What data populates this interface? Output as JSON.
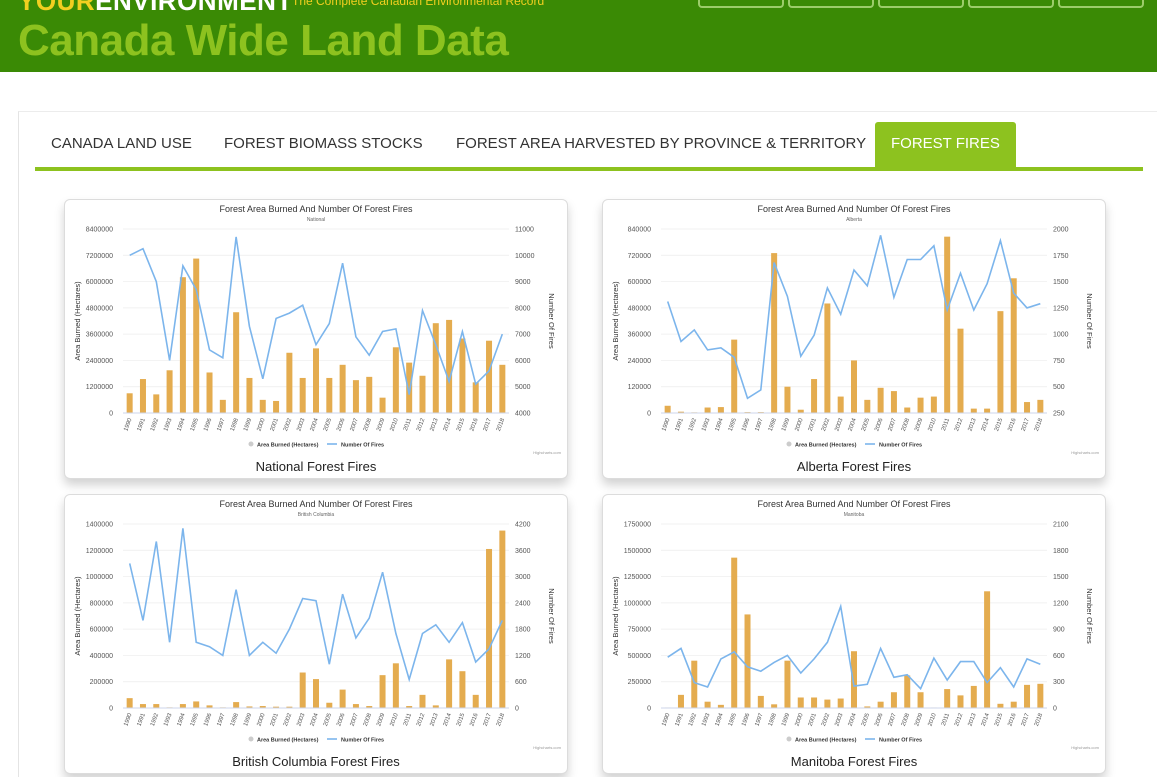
{
  "site": {
    "logo_part1": "YOUR",
    "logo_part2": "ENVIRONMENT",
    "tagline": "The Complete Canadian Environmental Record",
    "page_title": "Canada Wide Land Data"
  },
  "tabs": [
    {
      "label": "CANADA LAND USE"
    },
    {
      "label": "FOREST BIOMASS STOCKS"
    },
    {
      "label": "FOREST AREA HARVESTED BY PROVINCE & TERRITORY"
    },
    {
      "label": "FOREST FIRES"
    }
  ],
  "colors": {
    "header_bg": "#3a8a05",
    "accent": "#8dc21f",
    "logo_yellow": "#f2cf20",
    "bar": "#e4ac4f",
    "line": "#7cb5ec"
  },
  "chart_common": {
    "title": "Forest Area Burned And Number Of Forest Fires",
    "ylabel_left": "Area Burned (Hectares)",
    "ylabel_right": "Number Of Fires",
    "legend_area": "Area Burned (Hectares)",
    "legend_fires": "Number Of Fires",
    "credit": "Highcharts.com",
    "categories": [
      "1990",
      "1991",
      "1992",
      "1993",
      "1994",
      "1995",
      "1996",
      "1997",
      "1998",
      "1999",
      "2000",
      "2001",
      "2002",
      "2003",
      "2004",
      "2005",
      "2006",
      "2007",
      "2008",
      "2009",
      "2010",
      "2011",
      "2012",
      "2013",
      "2014",
      "2015",
      "2016",
      "2017",
      "2018"
    ]
  },
  "chart_data": [
    {
      "type": "bar",
      "title": "Forest Area Burned And Number Of Forest Fires",
      "subtitle": "National",
      "caption": "National Forest Fires",
      "xlabel": "",
      "ylabel": "Area Burned (Hectares)",
      "ylabel_right": "Number Of Fires",
      "ylim": [
        0,
        8400000
      ],
      "yticks": [
        0,
        1200000,
        2400000,
        3600000,
        4800000,
        6000000,
        7200000,
        8400000
      ],
      "y2lim": [
        4000,
        11000
      ],
      "y2ticks": [
        4000,
        5000,
        6000,
        7000,
        8000,
        9000,
        10000,
        11000
      ],
      "categories": [
        "1990",
        "1991",
        "1992",
        "1993",
        "1994",
        "1995",
        "1996",
        "1997",
        "1998",
        "1999",
        "2000",
        "2001",
        "2002",
        "2003",
        "2004",
        "2005",
        "2006",
        "2007",
        "2008",
        "2009",
        "2010",
        "2011",
        "2012",
        "2013",
        "2014",
        "2015",
        "2016",
        "2017",
        "2018"
      ],
      "series": [
        {
          "name": "Area Burned (Hectares)",
          "type": "bar",
          "values": [
            900000,
            1550000,
            850000,
            1950000,
            6200000,
            7050000,
            1850000,
            600000,
            4600000,
            1600000,
            600000,
            550000,
            2750000,
            1600000,
            2950000,
            1600000,
            2200000,
            1500000,
            1650000,
            700000,
            3000000,
            2300000,
            1700000,
            4100000,
            4250000,
            3400000,
            1400000,
            3300000,
            2200000
          ]
        },
        {
          "name": "Number Of Fires",
          "type": "line",
          "values": [
            10000,
            10250,
            9000,
            6000,
            9600,
            8700,
            6400,
            6100,
            10700,
            7300,
            5300,
            7600,
            7800,
            8100,
            6600,
            7400,
            9700,
            6900,
            6200,
            7100,
            7200,
            4700,
            7900,
            6600,
            5200,
            7100,
            5100,
            5600,
            7000
          ]
        }
      ],
      "legend": "bottom-center"
    },
    {
      "type": "bar",
      "title": "Forest Area Burned And Number Of Forest Fires",
      "subtitle": "Alberta",
      "caption": "Alberta Forest Fires",
      "xlabel": "",
      "ylabel": "Area Burned (Hectares)",
      "ylabel_right": "Number Of Fires",
      "ylim": [
        0,
        840000
      ],
      "yticks": [
        0,
        120000,
        240000,
        360000,
        480000,
        600000,
        720000,
        840000
      ],
      "y2lim": [
        250,
        2000
      ],
      "y2ticks": [
        250,
        500,
        750,
        1000,
        1250,
        1500,
        1750,
        2000
      ],
      "categories": [
        "1990",
        "1991",
        "1992",
        "1993",
        "1994",
        "1995",
        "1996",
        "1997",
        "1998",
        "1999",
        "2000",
        "2001",
        "2002",
        "2003",
        "2004",
        "2005",
        "2006",
        "2007",
        "2008",
        "2009",
        "2010",
        "2011",
        "2012",
        "2013",
        "2014",
        "2015",
        "2016",
        "2017",
        "2018"
      ],
      "series": [
        {
          "name": "Area Burned (Hectares)",
          "type": "bar",
          "values": [
            33000,
            6000,
            3000,
            25000,
            27000,
            335000,
            4000,
            4000,
            730000,
            120000,
            15000,
            155000,
            500000,
            75000,
            240000,
            60000,
            115000,
            100000,
            25000,
            70000,
            75000,
            805000,
            385000,
            20000,
            20000,
            465000,
            615000,
            50000,
            60000
          ]
        },
        {
          "name": "Number Of Fires",
          "type": "line",
          "values": [
            1310,
            930,
            1040,
            850,
            870,
            780,
            390,
            470,
            1680,
            1360,
            790,
            990,
            1440,
            1190,
            1610,
            1460,
            1940,
            1350,
            1710,
            1710,
            1840,
            1230,
            1580,
            1230,
            1480,
            1890,
            1390,
            1250,
            1290
          ]
        }
      ],
      "legend": "bottom-center"
    },
    {
      "type": "bar",
      "title": "Forest Area Burned And Number Of Forest Fires",
      "subtitle": "British Columbia",
      "caption": "British Columbia Forest Fires",
      "xlabel": "",
      "ylabel": "Area Burned (Hectares)",
      "ylabel_right": "Number Of Fires",
      "ylim": [
        0,
        1400000
      ],
      "yticks": [
        0,
        200000,
        400000,
        600000,
        800000,
        1000000,
        1200000,
        1400000
      ],
      "y2lim": [
        0,
        4200
      ],
      "y2ticks": [
        0,
        600,
        1200,
        1800,
        2400,
        3000,
        3600,
        4200
      ],
      "categories": [
        "1990",
        "1991",
        "1992",
        "1993",
        "1994",
        "1995",
        "1996",
        "1997",
        "1998",
        "1999",
        "2000",
        "2001",
        "2002",
        "2003",
        "2004",
        "2005",
        "2006",
        "2007",
        "2008",
        "2009",
        "2010",
        "2011",
        "2012",
        "2013",
        "2014",
        "2015",
        "2016",
        "2017",
        "2018"
      ],
      "series": [
        {
          "name": "Area Burned (Hectares)",
          "type": "bar",
          "values": [
            75000,
            30000,
            30000,
            5000,
            30000,
            50000,
            20000,
            5000,
            45000,
            12000,
            15000,
            10000,
            10000,
            270000,
            220000,
            40000,
            140000,
            30000,
            15000,
            250000,
            340000,
            15000,
            100000,
            20000,
            370000,
            280000,
            100000,
            1210000,
            1350000
          ]
        },
        {
          "name": "Number Of Fires",
          "type": "line",
          "values": [
            3300,
            2000,
            3800,
            1500,
            4100,
            1500,
            1400,
            1200,
            2700,
            1200,
            1500,
            1250,
            1800,
            2500,
            2450,
            1000,
            2600,
            1600,
            2050,
            3100,
            1700,
            650,
            1700,
            1900,
            1500,
            1950,
            1050,
            1350,
            2000
          ]
        }
      ],
      "legend": "bottom-center"
    },
    {
      "type": "bar",
      "title": "Forest Area Burned And Number Of Forest Fires",
      "subtitle": "Manitoba",
      "caption": "Manitoba Forest Fires",
      "xlabel": "",
      "ylabel": "Area Burned (Hectares)",
      "ylabel_right": "Number Of Fires",
      "ylim": [
        0,
        1750000
      ],
      "yticks": [
        0,
        250000,
        500000,
        750000,
        1000000,
        1250000,
        1500000,
        1750000
      ],
      "y2lim": [
        0,
        2100
      ],
      "y2ticks": [
        0,
        300,
        600,
        900,
        1200,
        1500,
        1800,
        2100
      ],
      "categories": [
        "1990",
        "1991",
        "1992",
        "1993",
        "1994",
        "1995",
        "1996",
        "1997",
        "1998",
        "1999",
        "2000",
        "2001",
        "2002",
        "2003",
        "2004",
        "2005",
        "2006",
        "2007",
        "2008",
        "2009",
        "2010",
        "2011",
        "2012",
        "2013",
        "2014",
        "2015",
        "2016",
        "2017",
        "2018"
      ],
      "series": [
        {
          "name": "Area Burned (Hectares)",
          "type": "bar",
          "values": [
            5000,
            125000,
            450000,
            60000,
            30000,
            1430000,
            890000,
            115000,
            35000,
            450000,
            100000,
            100000,
            80000,
            90000,
            540000,
            15000,
            60000,
            150000,
            310000,
            150000,
            5000,
            180000,
            120000,
            210000,
            1110000,
            40000,
            60000,
            220000,
            230000
          ]
        },
        {
          "name": "Number Of Fires",
          "type": "line",
          "values": [
            580,
            680,
            290,
            240,
            560,
            640,
            470,
            420,
            520,
            600,
            400,
            560,
            750,
            1160,
            250,
            270,
            680,
            350,
            380,
            220,
            570,
            320,
            530,
            530,
            290,
            460,
            240,
            560,
            500
          ]
        }
      ],
      "legend": "bottom-center"
    }
  ]
}
